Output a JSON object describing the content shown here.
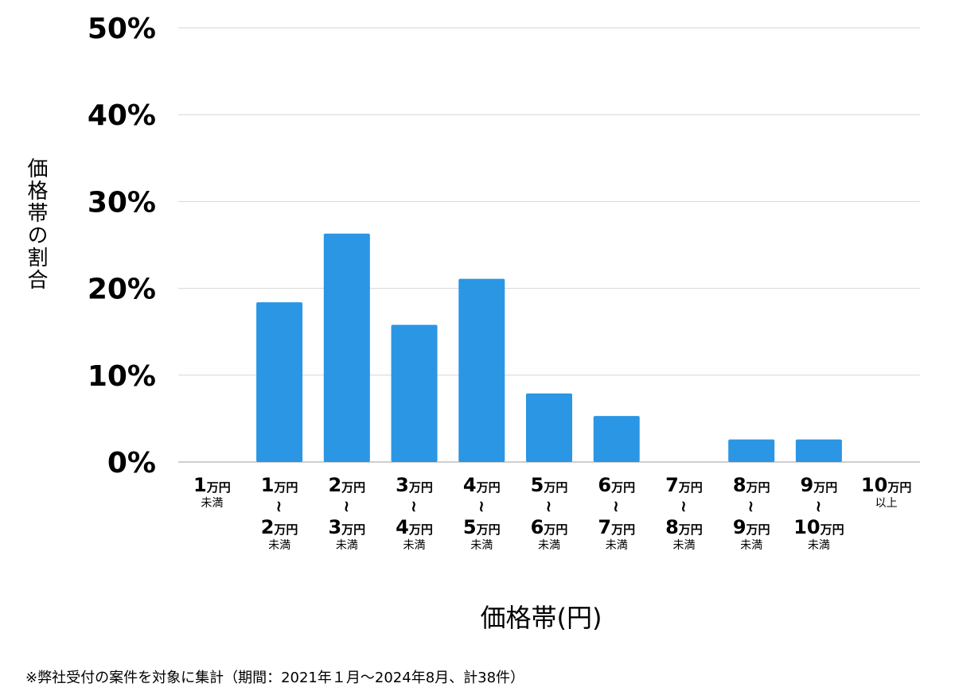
{
  "chart_data": {
    "type": "bar",
    "ylabel": "価格帯の割合",
    "xlabel": "価格帯(円)",
    "ylim": [
      0,
      50
    ],
    "yticks": [
      "0%",
      "10%",
      "20%",
      "30%",
      "40%",
      "50%"
    ],
    "ytick_values": [
      0,
      10,
      20,
      30,
      40,
      50
    ],
    "grid": true,
    "color": "#2a96e4",
    "categories": [
      {
        "lines": [
          {
            "num": "1",
            "unit": "万円"
          }
        ],
        "suffix": "未満"
      },
      {
        "lines": [
          {
            "num": "1",
            "unit": "万円"
          },
          {
            "num": "2",
            "unit": "万円"
          }
        ],
        "suffix": "未満"
      },
      {
        "lines": [
          {
            "num": "2",
            "unit": "万円"
          },
          {
            "num": "3",
            "unit": "万円"
          }
        ],
        "suffix": "未満"
      },
      {
        "lines": [
          {
            "num": "3",
            "unit": "万円"
          },
          {
            "num": "4",
            "unit": "万円"
          }
        ],
        "suffix": "未満"
      },
      {
        "lines": [
          {
            "num": "4",
            "unit": "万円"
          },
          {
            "num": "5",
            "unit": "万円"
          }
        ],
        "suffix": "未満"
      },
      {
        "lines": [
          {
            "num": "5",
            "unit": "万円"
          },
          {
            "num": "6",
            "unit": "万円"
          }
        ],
        "suffix": "未満"
      },
      {
        "lines": [
          {
            "num": "6",
            "unit": "万円"
          },
          {
            "num": "7",
            "unit": "万円"
          }
        ],
        "suffix": "未満"
      },
      {
        "lines": [
          {
            "num": "7",
            "unit": "万円"
          },
          {
            "num": "8",
            "unit": "万円"
          }
        ],
        "suffix": "未満"
      },
      {
        "lines": [
          {
            "num": "8",
            "unit": "万円"
          },
          {
            "num": "9",
            "unit": "万円"
          }
        ],
        "suffix": "未満"
      },
      {
        "lines": [
          {
            "num": "9",
            "unit": "万円"
          },
          {
            "num": "10",
            "unit": "万円"
          }
        ],
        "suffix": "未満"
      },
      {
        "lines": [
          {
            "num": "10",
            "unit": "万円"
          }
        ],
        "suffix": "以上"
      }
    ],
    "range_mark": "~",
    "values": [
      0,
      18.4,
      26.3,
      15.8,
      21.1,
      7.9,
      5.3,
      0,
      2.6,
      2.6,
      0
    ]
  },
  "footnote": "※弊社受付の案件を対象に集計（期間：2021年１月～2024年8月、計38件）"
}
